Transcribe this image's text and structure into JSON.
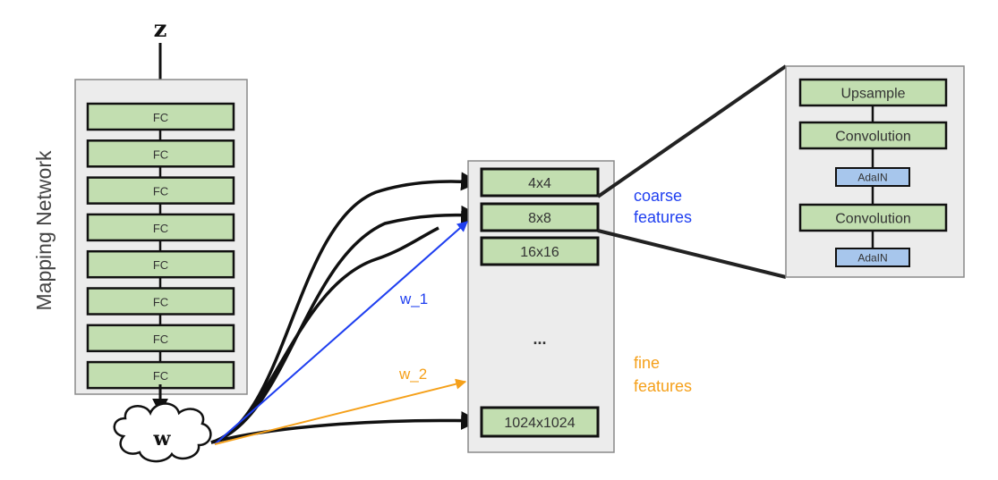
{
  "diagram": {
    "input_label": "z",
    "latent_label": "w",
    "mapping_network": {
      "title": "Mapping Network",
      "layers": [
        "FC",
        "FC",
        "FC",
        "FC",
        "FC",
        "FC",
        "FC",
        "FC"
      ]
    },
    "synthesis_network": {
      "blocks": [
        "4x4",
        "8x8",
        "16x16"
      ],
      "ellipsis": "...",
      "final_block": "1024x1024"
    },
    "block_detail": {
      "layers": [
        {
          "label": "Upsample",
          "kind": "main"
        },
        {
          "label": "Convolution",
          "kind": "main"
        },
        {
          "label": "AdaIN",
          "kind": "norm"
        },
        {
          "label": "Convolution",
          "kind": "main"
        },
        {
          "label": "AdaIN",
          "kind": "norm"
        }
      ]
    },
    "annotations": {
      "coarse_line1": "coarse",
      "coarse_line2": "features",
      "fine_line1": "fine",
      "fine_line2": "features",
      "w1": "w_1",
      "w2": "w_2"
    },
    "colors": {
      "layer_fill": "#c2deb0",
      "norm_fill": "#a7c6ec",
      "panel_fill": "#ececec",
      "blue": "#1f3ff0",
      "orange": "#f5a01a"
    }
  }
}
